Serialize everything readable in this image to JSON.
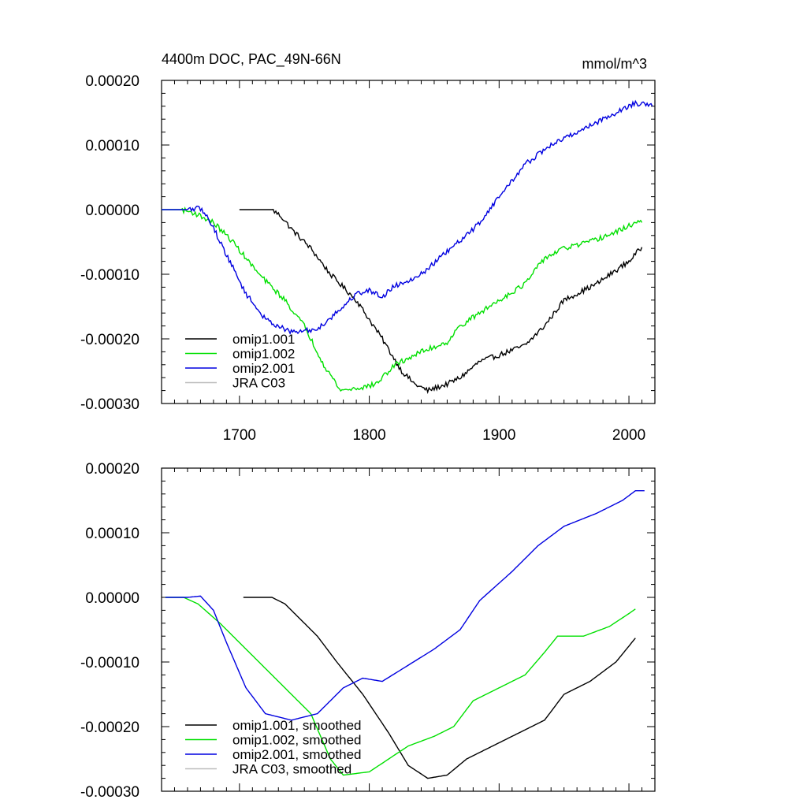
{
  "chart_data": [
    {
      "type": "line",
      "panel": "top",
      "title": "4400m DOC, PAC_49N-66N",
      "units": "mmol/m^3",
      "xlim": [
        1640,
        2020
      ],
      "ylim": [
        -0.0003,
        0.0002
      ],
      "xticks": [
        1700,
        1800,
        1900,
        2000
      ],
      "xtick_labels": [
        "1700",
        "1800",
        "1900",
        "2000"
      ],
      "yticks": [
        0.0002,
        0.0001,
        0.0,
        -0.0001,
        -0.0002,
        -0.0003
      ],
      "ytick_labels": [
        "0.00020",
        "0.00010",
        "0.00000",
        "-0.00010",
        "-0.00020",
        "-0.00030"
      ],
      "legend_position": "bottom-left",
      "series": [
        {
          "name": "omip1.001",
          "color": "#000000",
          "noisy": true,
          "points": [
            [
              1700,
              0.0
            ],
            [
              1725,
              0.0
            ],
            [
              1732,
              -1e-05
            ],
            [
              1740,
              -3e-05
            ],
            [
              1755,
              -6e-05
            ],
            [
              1770,
              -0.0001
            ],
            [
              1790,
              -0.00014
            ],
            [
              1810,
              -0.0002
            ],
            [
              1825,
              -0.00025
            ],
            [
              1835,
              -0.00027
            ],
            [
              1845,
              -0.00028
            ],
            [
              1860,
              -0.00027
            ],
            [
              1870,
              -0.00026
            ],
            [
              1885,
              -0.000235
            ],
            [
              1900,
              -0.000225
            ],
            [
              1920,
              -0.00021
            ],
            [
              1935,
              -0.00018
            ],
            [
              1950,
              -0.00014
            ],
            [
              1975,
              -0.000115
            ],
            [
              2000,
              -8e-05
            ],
            [
              2010,
              -5.8e-05
            ]
          ]
        },
        {
          "name": "omip1.002",
          "color": "#00e000",
          "noisy": true,
          "points": [
            [
              1640,
              0.0
            ],
            [
              1655,
              0.0
            ],
            [
              1665,
              -5e-06
            ],
            [
              1680,
              -2e-05
            ],
            [
              1695,
              -5e-05
            ],
            [
              1715,
              -0.0001
            ],
            [
              1735,
              -0.00014
            ],
            [
              1750,
              -0.00018
            ],
            [
              1765,
              -0.00024
            ],
            [
              1778,
              -0.00028
            ],
            [
              1795,
              -0.000275
            ],
            [
              1805,
              -0.00027
            ],
            [
              1820,
              -0.00024
            ],
            [
              1840,
              -0.00022
            ],
            [
              1860,
              -0.000205
            ],
            [
              1870,
              -0.00018
            ],
            [
              1900,
              -0.00014
            ],
            [
              1920,
              -0.000115
            ],
            [
              1935,
              -7.5e-05
            ],
            [
              1950,
              -6e-05
            ],
            [
              1970,
              -5e-05
            ],
            [
              1990,
              -3.5e-05
            ],
            [
              2005,
              -2e-05
            ],
            [
              2010,
              -2e-05
            ]
          ]
        },
        {
          "name": "omip2.001",
          "color": "#0000e0",
          "noisy": true,
          "points": [
            [
              1640,
              0.0
            ],
            [
              1660,
              0.0
            ],
            [
              1670,
              2e-06
            ],
            [
              1678,
              -2e-05
            ],
            [
              1690,
              -7e-05
            ],
            [
              1705,
              -0.00013
            ],
            [
              1720,
              -0.00017
            ],
            [
              1740,
              -0.00019
            ],
            [
              1760,
              -0.000185
            ],
            [
              1780,
              -0.00015
            ],
            [
              1790,
              -0.00013
            ],
            [
              1800,
              -0.000125
            ],
            [
              1810,
              -0.000135
            ],
            [
              1818,
              -0.00012
            ],
            [
              1840,
              -0.0001
            ],
            [
              1860,
              -6.5e-05
            ],
            [
              1875,
              -4e-05
            ],
            [
              1885,
              -2e-05
            ],
            [
              1900,
              2e-05
            ],
            [
              1920,
              7e-05
            ],
            [
              1940,
              0.0001
            ],
            [
              1960,
              0.00012
            ],
            [
              1980,
              0.00014
            ],
            [
              1995,
              0.000155
            ],
            [
              2005,
              0.000165
            ],
            [
              2018,
              0.00016
            ]
          ]
        }
      ],
      "legend": [
        "omip1.001",
        "omip1.002",
        "omip2.001",
        "JRA C03"
      ],
      "legend_colors": [
        "#000000",
        "#00e000",
        "#0000e0",
        "#bdbdbd"
      ]
    },
    {
      "type": "line",
      "panel": "bottom",
      "xlim": [
        1640,
        2020
      ],
      "ylim": [
        -0.0003,
        0.0002
      ],
      "xticks": [
        1700,
        1800,
        1900,
        2000
      ],
      "yticks": [
        0.0002,
        0.0001,
        0.0,
        -0.0001,
        -0.0002,
        -0.0003
      ],
      "ytick_labels": [
        "0.00020",
        "0.00010",
        "0.00000",
        "-0.00010",
        "-0.00020",
        "-0.00030"
      ],
      "legend_position": "bottom-left",
      "series": [
        {
          "name": "omip1.001, smoothed",
          "color": "#000000",
          "noisy": false,
          "points": [
            [
              1703,
              0.0
            ],
            [
              1725,
              0.0
            ],
            [
              1735,
              -1e-05
            ],
            [
              1745,
              -3e-05
            ],
            [
              1760,
              -6e-05
            ],
            [
              1775,
              -0.0001
            ],
            [
              1795,
              -0.00015
            ],
            [
              1815,
              -0.00021
            ],
            [
              1830,
              -0.00026
            ],
            [
              1845,
              -0.00028
            ],
            [
              1860,
              -0.000275
            ],
            [
              1875,
              -0.00025
            ],
            [
              1895,
              -0.00023
            ],
            [
              1915,
              -0.00021
            ],
            [
              1935,
              -0.00019
            ],
            [
              1950,
              -0.00015
            ],
            [
              1970,
              -0.00013
            ],
            [
              1990,
              -0.0001
            ],
            [
              2005,
              -6.3e-05
            ]
          ]
        },
        {
          "name": "omip1.002, smoothed",
          "color": "#00e000",
          "noisy": false,
          "points": [
            [
              1643,
              0.0
            ],
            [
              1657,
              0.0
            ],
            [
              1668,
              -1e-05
            ],
            [
              1685,
              -4e-05
            ],
            [
              1700,
              -7e-05
            ],
            [
              1720,
              -0.00011
            ],
            [
              1740,
              -0.00015
            ],
            [
              1755,
              -0.00018
            ],
            [
              1770,
              -0.00025
            ],
            [
              1780,
              -0.000275
            ],
            [
              1800,
              -0.00027
            ],
            [
              1815,
              -0.00025
            ],
            [
              1830,
              -0.00023
            ],
            [
              1850,
              -0.000215
            ],
            [
              1865,
              -0.0002
            ],
            [
              1880,
              -0.00016
            ],
            [
              1900,
              -0.00014
            ],
            [
              1920,
              -0.00012
            ],
            [
              1935,
              -8.5e-05
            ],
            [
              1945,
              -6e-05
            ],
            [
              1965,
              -6e-05
            ],
            [
              1985,
              -4.5e-05
            ],
            [
              2000,
              -2.5e-05
            ],
            [
              2005,
              -1.8e-05
            ]
          ]
        },
        {
          "name": "omip2.001, smoothed",
          "color": "#0000e0",
          "noisy": false,
          "points": [
            [
              1643,
              0.0
            ],
            [
              1660,
              0.0
            ],
            [
              1670,
              2e-06
            ],
            [
              1680,
              -2e-05
            ],
            [
              1690,
              -7e-05
            ],
            [
              1705,
              -0.00014
            ],
            [
              1720,
              -0.00018
            ],
            [
              1740,
              -0.00019
            ],
            [
              1760,
              -0.00018
            ],
            [
              1780,
              -0.00014
            ],
            [
              1795,
              -0.000125
            ],
            [
              1810,
              -0.00013
            ],
            [
              1830,
              -0.000105
            ],
            [
              1850,
              -8e-05
            ],
            [
              1870,
              -5e-05
            ],
            [
              1885,
              -5e-06
            ],
            [
              1910,
              4e-05
            ],
            [
              1930,
              8e-05
            ],
            [
              1950,
              0.00011
            ],
            [
              1975,
              0.00013
            ],
            [
              1995,
              0.00015
            ],
            [
              2005,
              0.000165
            ],
            [
              2012,
              0.000165
            ]
          ]
        }
      ],
      "legend": [
        "omip1.001, smoothed",
        "omip1.002, smoothed",
        "omip2.001, smoothed",
        "JRA C03, smoothed"
      ],
      "legend_colors": [
        "#000000",
        "#00e000",
        "#0000e0",
        "#bdbdbd"
      ]
    }
  ]
}
